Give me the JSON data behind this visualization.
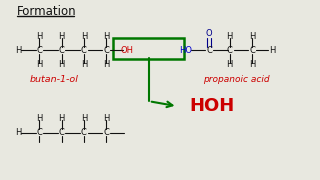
{
  "title": "Formation",
  "bg_color": "#e8e8e0",
  "butan1ol_label": "butan-1-ol",
  "propanoic_label": "propanoic acid",
  "hoh_label": "HOH",
  "label_color_red": "#cc0000",
  "label_color_blue": "#0000cc",
  "label_color_green": "#007700",
  "label_color_black": "#111111",
  "label_color_darkblue": "#00008B"
}
